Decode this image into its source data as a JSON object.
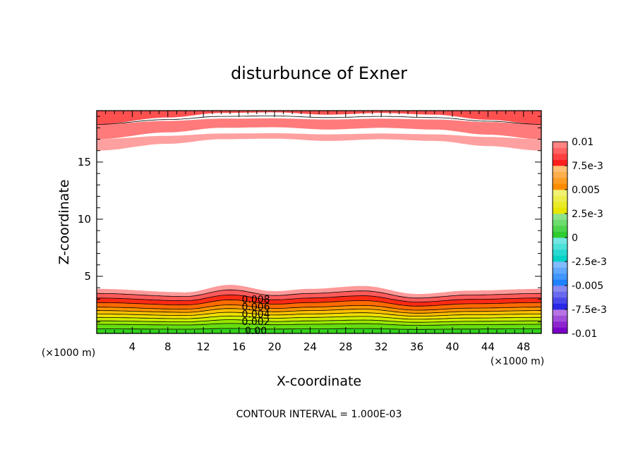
{
  "chart_data": {
    "type": "heatmap",
    "subtype": "filled-contour",
    "title": "disturbunce of Exner",
    "xlabel": "X-coordinate",
    "ylabel": "Z-coordinate",
    "x_unit": "(×1000 m)",
    "y_unit": "(×1000 m)",
    "xlim": [
      0,
      50
    ],
    "ylim": [
      0,
      19.5
    ],
    "x_ticks": [
      4,
      8,
      12,
      16,
      20,
      24,
      28,
      32,
      36,
      40,
      44,
      48
    ],
    "y_ticks": [
      5,
      10,
      15
    ],
    "footer": "CONTOUR INTERVAL = 1.000E-03",
    "contour_interval": 0.001,
    "colorbar": {
      "range": [
        -0.01,
        0.01
      ],
      "labels": [
        "0.01",
        "7.5e-3",
        "0.005",
        "2.5e-3",
        "0",
        "-2.5e-3",
        "-0.005",
        "-7.5e-3",
        "-0.01"
      ],
      "levels": [
        {
          "from": -0.01,
          "to": -0.0075,
          "color": "#7a00c8"
        },
        {
          "from": -0.0075,
          "to": -0.005,
          "color": "#2828e6"
        },
        {
          "from": -0.005,
          "to": -0.0025,
          "color": "#1e82ff"
        },
        {
          "from": -0.0025,
          "to": 0,
          "color": "#00d2c8"
        },
        {
          "from": 0,
          "to": 0.0025,
          "color": "#2ecc2e"
        },
        {
          "from": 0.0025,
          "to": 0.005,
          "color": "#e6e600"
        },
        {
          "from": 0.005,
          "to": 0.0075,
          "color": "#ff8c00"
        },
        {
          "from": 0.0075,
          "to": 0.01,
          "color": "#ff1e1e"
        }
      ]
    },
    "contour_labels": [
      "0.008",
      "0.006",
      "0.004",
      "0.002",
      "0.00"
    ],
    "lower_band": {
      "bands": [
        {
          "z_bottom": 0.0,
          "z_top": 0.4,
          "color": "#33d11a"
        },
        {
          "z_bottom": 0.4,
          "z_top": 0.8,
          "color": "#66dd10"
        },
        {
          "z_bottom": 0.8,
          "z_top": 1.1,
          "color": "#99e600"
        },
        {
          "z_bottom": 1.1,
          "z_top": 1.4,
          "color": "#ccee00"
        },
        {
          "z_bottom": 1.4,
          "z_top": 1.7,
          "color": "#f0e000"
        },
        {
          "z_bottom": 1.7,
          "z_top": 2.0,
          "color": "#ffc000"
        },
        {
          "z_bottom": 2.0,
          "z_top": 2.3,
          "color": "#ff9600"
        },
        {
          "z_bottom": 2.3,
          "z_top": 2.7,
          "color": "#ff6a00"
        },
        {
          "z_bottom": 2.7,
          "z_top": 3.1,
          "color": "#ff2a14"
        },
        {
          "z_bottom": 3.1,
          "z_top": 3.5,
          "color": "#ff5a5a"
        },
        {
          "z_bottom": 3.5,
          "z_top": 3.9,
          "color": "#ff9a9a"
        }
      ],
      "bump_x": [
        0,
        10,
        15,
        20,
        24,
        30,
        36,
        42,
        50
      ],
      "bump_dz": [
        0.0,
        -0.3,
        0.35,
        -0.2,
        0.0,
        0.25,
        -0.45,
        -0.15,
        0.0
      ]
    },
    "upper_band": {
      "bands": [
        {
          "z_top": 19.5,
          "z_bottom": 18.3,
          "color": "#ff5050"
        },
        {
          "z_top": 18.3,
          "z_bottom": 17.0,
          "color": "#ff7a7a"
        },
        {
          "z_top": 17.0,
          "z_bottom": 16.0,
          "color": "#ffa0a0"
        }
      ],
      "bulge_x": [
        0,
        8,
        14,
        20,
        26,
        32,
        38,
        44,
        50
      ],
      "bulge_dz": [
        0.0,
        0.6,
        1.0,
        1.05,
        0.85,
        1.0,
        0.85,
        0.4,
        0.0
      ]
    }
  }
}
